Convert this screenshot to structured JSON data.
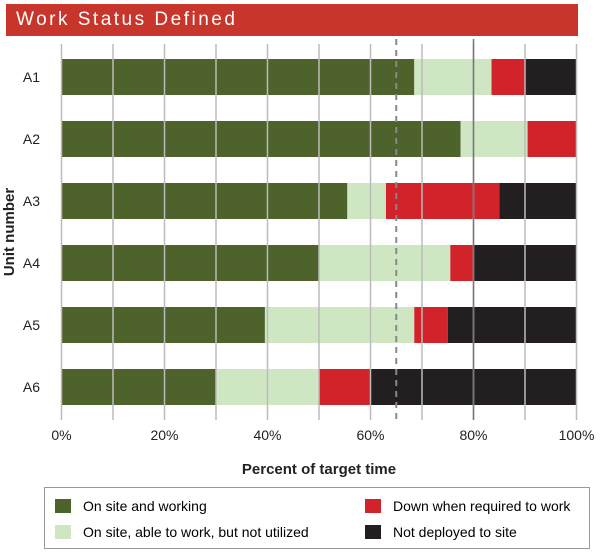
{
  "title": "Work Status Defined",
  "chart_data": {
    "type": "bar",
    "orientation": "horizontal",
    "stacked": true,
    "xlabel": "Percent of target time",
    "ylabel": "Unit number",
    "xlim": [
      0,
      100
    ],
    "x_ticks": [
      "0%",
      "20%",
      "40%",
      "60%",
      "80%",
      "100%"
    ],
    "grid": true,
    "reference_lines": [
      {
        "value": 65,
        "style": "dashed"
      },
      {
        "value": 80,
        "style": "solid"
      }
    ],
    "categories": [
      "A1",
      "A2",
      "A3",
      "A4",
      "A5",
      "A6"
    ],
    "series": [
      {
        "name": "On site and working",
        "color": "#4e622b",
        "values": [
          68.5,
          77.5,
          55.5,
          50,
          39.5,
          30
        ]
      },
      {
        "name": "On site, able to work, but not utilized",
        "color": "#cfe6c3",
        "values": [
          15,
          13,
          7.5,
          25.5,
          29,
          20
        ]
      },
      {
        "name": "Down when required to work",
        "color": "#d2232a",
        "values": [
          6.5,
          9.5,
          22,
          4.5,
          6.5,
          10
        ]
      },
      {
        "name": "Not deployed to site",
        "color": "#231f20",
        "values": [
          10,
          0,
          15,
          20,
          25,
          40
        ]
      }
    ],
    "legend_placement": "bottom"
  }
}
